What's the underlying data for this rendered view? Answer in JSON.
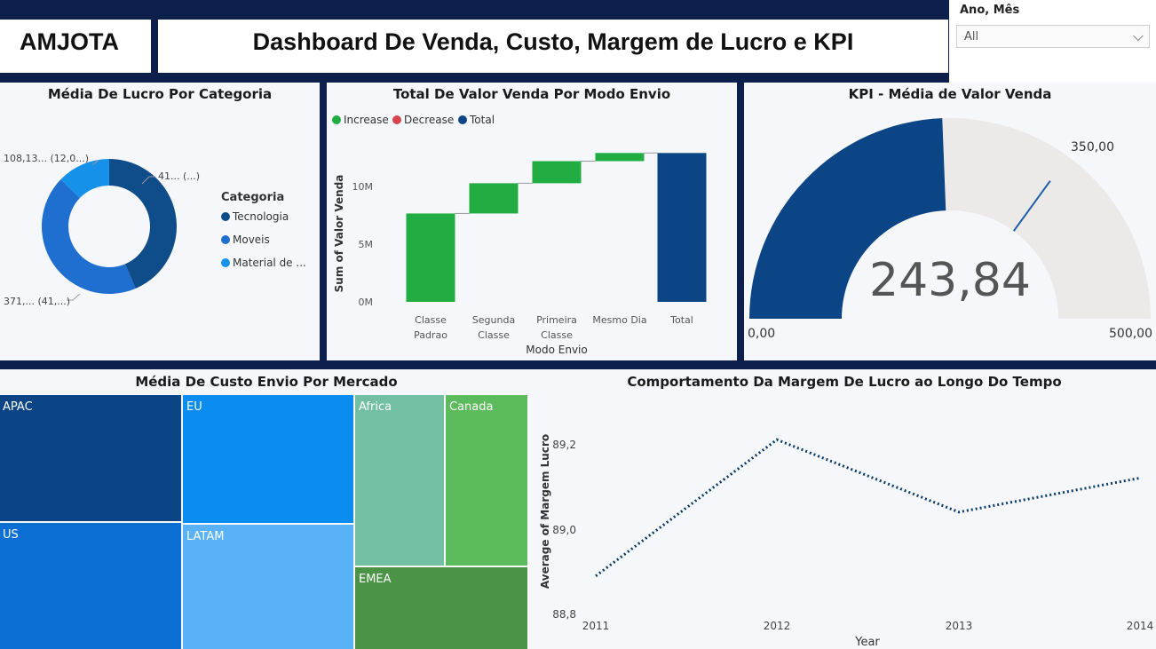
{
  "header": {
    "brand": "AMJOTA",
    "title": "Dashboard De Venda, Custo, Margem de Lucro e KPI"
  },
  "slicer": {
    "label": "Ano, Mês",
    "value": "All",
    "icon": "chevron-down-icon"
  },
  "colors": {
    "tecnologia": "#0f4c8a",
    "moveis": "#1f6fd1",
    "material": "#1591ea",
    "increase": "#22ad43",
    "decrease": "#d64550",
    "total": "#0c4585",
    "gauge_fill": "#0c4585",
    "gauge_track": "#eceae8",
    "line": "#0c3d6b"
  },
  "donut": {
    "title": "Média De Lucro Por Categoria",
    "legend_title": "Categoria",
    "labels": {
      "tecnologia": "41... (...)",
      "moveis": "371,... (41,...)",
      "material": "108,13... (12,0...)"
    },
    "chart_data": {
      "type": "pie",
      "categories": [
        "Tecnologia",
        "Moveis",
        "Material de ..."
      ],
      "values": [
        41,
        41,
        12
      ]
    }
  },
  "waterfall": {
    "title": "Total De Valor Venda Por Modo Envio",
    "legend": [
      "Increase",
      "Decrease",
      "Total"
    ],
    "xlabel": "Modo Envio",
    "ylabel": "Sum of Valor Venda",
    "yticks": [
      "0M",
      "5M",
      "10M"
    ],
    "categories": [
      [
        "Classe",
        "Padrao"
      ],
      [
        "Segunda",
        "Classe"
      ],
      [
        "Primeira",
        "Classe"
      ],
      [
        "Mesmo Dia"
      ],
      [
        "Total"
      ]
    ],
    "chart_data": {
      "type": "bar",
      "categories": [
        "Classe Padrao",
        "Segunda Classe",
        "Primeira Classe",
        "Mesmo Dia",
        "Total"
      ],
      "values": [
        7.6,
        2.6,
        1.9,
        0.7,
        12.8
      ],
      "kinds": [
        "increase",
        "increase",
        "increase",
        "increase",
        "total"
      ],
      "ylim": [
        0,
        14
      ]
    }
  },
  "gauge": {
    "title": "KPI - Média de Valor Venda",
    "value_label": "243,84",
    "min_label": "0,00",
    "max_label": "500,00",
    "target_label": "350,00",
    "chart_data": {
      "value": 243.84,
      "min": 0,
      "max": 500,
      "target": 350
    }
  },
  "treemap": {
    "title": "Média De Custo Envio Por Mercado",
    "chart_data": {
      "type": "treemap",
      "categories": [
        "APAC",
        "US",
        "EU",
        "LATAM",
        "Africa",
        "Canada",
        "EMEA"
      ]
    },
    "colors": [
      "#0c4585",
      "#0b6fd3",
      "#0a8cf0",
      "#58b2f5",
      "#72bfa3",
      "#5cbb5c",
      "#4b9447"
    ]
  },
  "line": {
    "title": "Comportamento Da Margem De Lucro ao Longo Do Tempo",
    "xlabel": "Year",
    "ylabel": "Average of Margem Lucro",
    "yticks": [
      "88,8",
      "89,0",
      "89,2"
    ],
    "xticks": [
      "2011",
      "2012",
      "2013",
      "2014"
    ],
    "chart_data": {
      "type": "line",
      "x": [
        2011,
        2012,
        2013,
        2014
      ],
      "values": [
        88.89,
        89.21,
        89.04,
        89.12
      ],
      "ylim": [
        88.8,
        89.2
      ]
    }
  }
}
